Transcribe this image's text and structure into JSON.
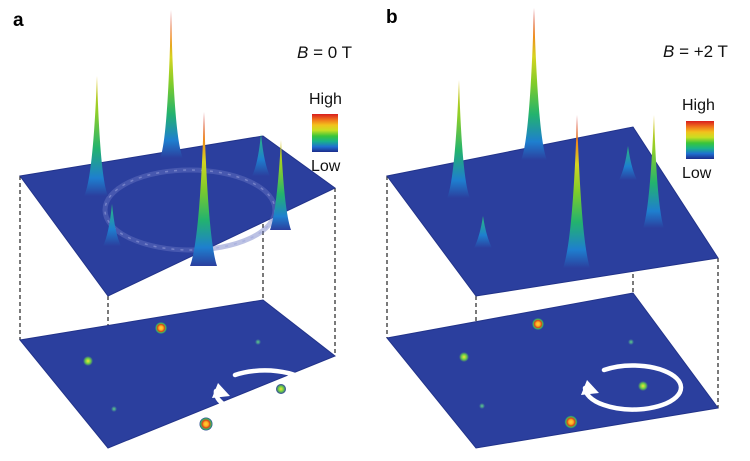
{
  "panels": [
    {
      "letter": "a",
      "field_symbol": "B",
      "field_value": " = 0 T",
      "colorbar": {
        "high": "High",
        "low": "Low"
      }
    },
    {
      "letter": "b",
      "field_symbol": "B",
      "field_value": " = +2 T",
      "colorbar": {
        "high": "High",
        "low": "Low"
      }
    }
  ],
  "colors": {
    "plane_blue": "#2b3f9e",
    "plane_edge": "#22338a",
    "arrow": "#ffffff",
    "colormap": [
      "#1c2c8c",
      "#1f6fd0",
      "#19b38a",
      "#39c53a",
      "#c9df22",
      "#f2c21c",
      "#f0731c",
      "#d91e1e"
    ]
  }
}
